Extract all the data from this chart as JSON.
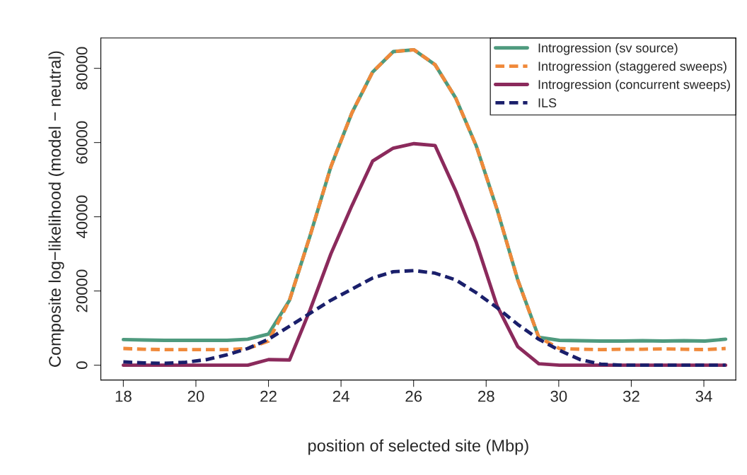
{
  "chart_data": {
    "type": "line",
    "xlabel": "position of selected site (Mbp)",
    "ylabel": "Composite log−likelihood (model − neutral)",
    "x": [
      18.0,
      18.57,
      19.14,
      19.72,
      20.29,
      20.86,
      21.43,
      22.0,
      22.58,
      23.15,
      23.72,
      24.3,
      24.87,
      25.44,
      26.01,
      26.59,
      27.16,
      27.73,
      28.3,
      28.87,
      29.45,
      30.02,
      30.59,
      31.16,
      31.74,
      32.31,
      32.88,
      33.45,
      34.03,
      34.6
    ],
    "series": [
      {
        "name": "Introgression (sv source)",
        "color": "#4e9a7e",
        "line_style": "solid",
        "values": [
          6900,
          6800,
          6700,
          6700,
          6700,
          6700,
          7000,
          8400,
          17500,
          35000,
          53500,
          68000,
          79000,
          84500,
          85000,
          81000,
          72000,
          59000,
          42000,
          23000,
          7500,
          6700,
          6600,
          6500,
          6500,
          6600,
          6500,
          6600,
          6500,
          7000
        ]
      },
      {
        "name": "Introgression (staggered sweeps)",
        "color": "#f0893a",
        "line_style": "dashed",
        "values": [
          4500,
          4300,
          4200,
          4200,
          4200,
          4200,
          4500,
          6500,
          17500,
          35000,
          53500,
          68000,
          79000,
          84500,
          85000,
          81000,
          72000,
          59000,
          42000,
          23000,
          7500,
          4500,
          4300,
          4200,
          4300,
          4300,
          4400,
          4300,
          4200,
          4500
        ]
      },
      {
        "name": "Introgression (concurrent sweeps)",
        "color": "#8b2a5c",
        "line_style": "solid",
        "values": [
          0,
          0,
          0,
          0,
          0,
          0,
          0,
          1500,
          1400,
          15000,
          30000,
          43000,
          55000,
          58500,
          59700,
          59200,
          47000,
          33000,
          16000,
          5000,
          400,
          0,
          0,
          0,
          0,
          0,
          0,
          0,
          0,
          0
        ]
      },
      {
        "name": "ILS",
        "color": "#1a1f6b",
        "line_style": "dashed",
        "values": [
          900,
          600,
          500,
          800,
          1500,
          2800,
          4500,
          7000,
          10500,
          14000,
          17500,
          20500,
          23500,
          25200,
          25500,
          24800,
          23000,
          19500,
          15500,
          11000,
          7000,
          4000,
          1500,
          300,
          0,
          0,
          0,
          0,
          0,
          0
        ]
      }
    ],
    "xlim": [
      17.38,
      34.88
    ],
    "ylim": [
      -3990,
      88170
    ],
    "xticks": [
      18,
      20,
      22,
      24,
      26,
      28,
      30,
      32,
      34
    ],
    "yticks": [
      0,
      20000,
      40000,
      60000,
      80000
    ],
    "grid": false,
    "legend": "top right"
  }
}
